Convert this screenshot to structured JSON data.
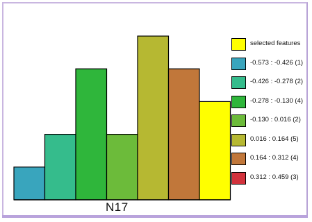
{
  "chart_data": {
    "type": "bar",
    "xlabel": "N17",
    "ylim": [
      0,
      5
    ],
    "categories": [
      "-0.573 : -0.426 (1)",
      "-0.426 : -0.278 (2)",
      "-0.278 : -0.130 (4)",
      "-0.130 : 0.016 (2)",
      "0.016 : 0.164 (5)",
      "0.164 : 0.312 (4)",
      "0.312 : 0.459 (3)"
    ],
    "values": [
      1,
      2,
      4,
      2,
      5,
      4,
      3
    ],
    "bar_colors": [
      "#39a5bd",
      "#35bc8c",
      "#2fb63b",
      "#6cbb3a",
      "#b6b832",
      "#c1773a",
      "#ffff00"
    ],
    "legend": [
      {
        "label": "selected features",
        "color": "#ffff00"
      },
      {
        "label": "-0.573 : -0.426 (1)",
        "color": "#39a5bd"
      },
      {
        "label": "-0.426 : -0.278 (2)",
        "color": "#35bc8c"
      },
      {
        "label": "-0.278 : -0.130 (4)",
        "color": "#2fb63b"
      },
      {
        "label": "-0.130 : 0.016 (2)",
        "color": "#6cbb3a"
      },
      {
        "label": "0.016 : 0.164 (5)",
        "color": "#b6b832"
      },
      {
        "label": "0.164 : 0.312 (4)",
        "color": "#c1773a"
      },
      {
        "label": "0.312 : 0.459 (3)",
        "color": "#d2323c"
      }
    ],
    "legend_position": "right"
  }
}
